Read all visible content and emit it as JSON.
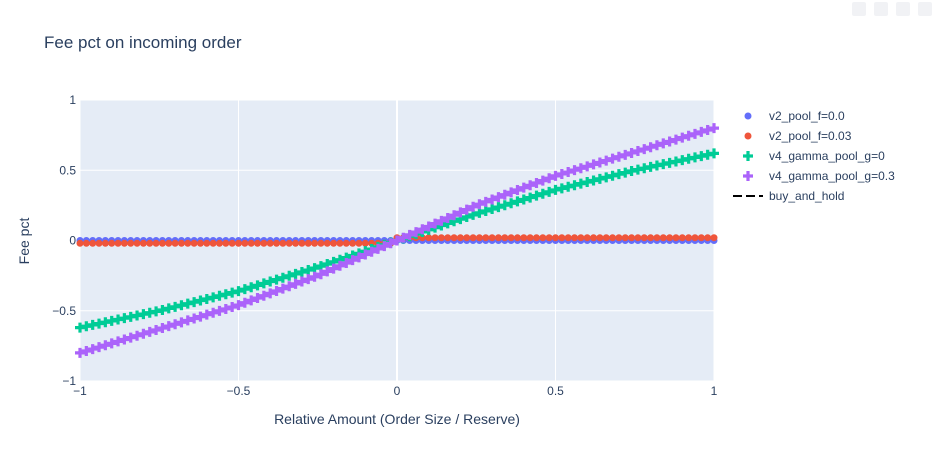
{
  "chart_data": {
    "type": "scatter",
    "title": "Fee pct on incoming order",
    "xlabel": "Relative Amount (Order Size / Reserve)",
    "ylabel": "Fee pct",
    "xlim": [
      -1,
      1
    ],
    "ylim": [
      -1,
      1
    ],
    "x_ticks": [
      -1,
      -0.5,
      0,
      0.5,
      1
    ],
    "y_ticks": [
      -1,
      -0.5,
      0,
      0.5,
      1
    ],
    "x_tick_labels": [
      "−1",
      "−0.5",
      "0",
      "0.5",
      "1"
    ],
    "y_tick_labels": [
      "−1",
      "−0.5",
      "0",
      "0.5",
      "1"
    ],
    "grid": true,
    "legend_position": "top-right outside",
    "x_range_points": {
      "start": -1,
      "end": 1,
      "count": 101
    },
    "series": [
      {
        "name": "v2_pool_f=0.0",
        "marker": "circle",
        "color": "#636efa",
        "points": [
          [
            -1,
            0
          ],
          [
            0,
            0
          ],
          [
            1,
            0
          ]
        ]
      },
      {
        "name": "v2_pool_f=0.03",
        "marker": "circle",
        "color": "#ef553b",
        "points": [
          [
            -1,
            -0.02
          ],
          [
            -0.02,
            -0.02
          ],
          [
            0,
            0.02
          ],
          [
            1,
            0.02
          ]
        ]
      },
      {
        "name": "v4_gamma_pool_g=0",
        "marker": "cross",
        "color": "#00cc96",
        "points": [
          [
            -1,
            -0.62
          ],
          [
            -0.75,
            -0.5
          ],
          [
            -0.5,
            -0.36
          ],
          [
            -0.25,
            -0.19
          ],
          [
            0,
            0
          ],
          [
            0.25,
            0.19
          ],
          [
            0.5,
            0.36
          ],
          [
            0.75,
            0.5
          ],
          [
            1,
            0.62
          ]
        ]
      },
      {
        "name": "v4_gamma_pool_g=0.3",
        "marker": "cross",
        "color": "#ab63fa",
        "points": [
          [
            -1,
            -0.8
          ],
          [
            -0.75,
            -0.63
          ],
          [
            -0.5,
            -0.46
          ],
          [
            -0.25,
            -0.25
          ],
          [
            0,
            0
          ],
          [
            0.25,
            0.25
          ],
          [
            0.5,
            0.46
          ],
          [
            0.75,
            0.63
          ],
          [
            1,
            0.8
          ]
        ]
      },
      {
        "name": "buy_and_hold",
        "marker": "dash-line",
        "color": "#000000",
        "points": []
      }
    ]
  }
}
